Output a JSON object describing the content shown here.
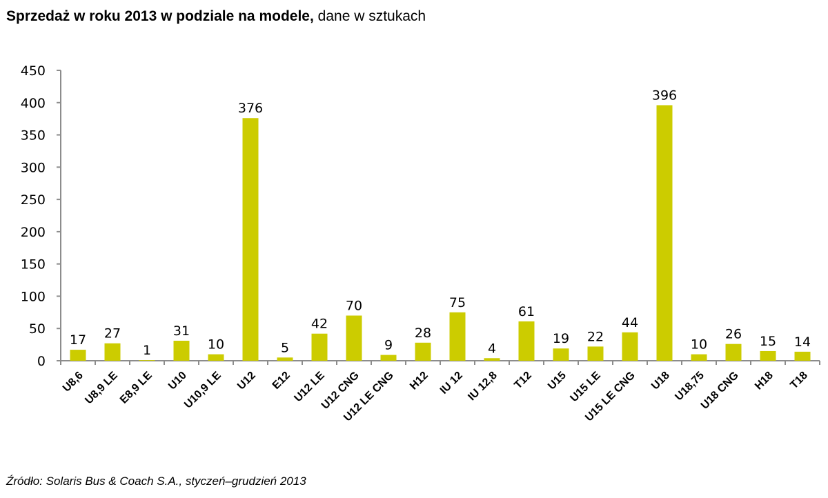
{
  "chart_data": {
    "type": "bar",
    "title": "Sprzedaż w roku 2013 w podziale na modele,",
    "subtitle": "dane w sztukach",
    "xlabel": "",
    "ylabel": "",
    "ylim": [
      0,
      450
    ],
    "yticks": [
      0,
      50,
      100,
      150,
      200,
      250,
      300,
      350,
      400,
      450
    ],
    "grid": false,
    "legend": null,
    "bar_color": "#cccc00",
    "categories": [
      "U8,6",
      "U8,9 LE",
      "E8,9 LE",
      "U10",
      "U10,9 LE",
      "U12",
      "E12",
      "U12 LE",
      "U12 CNG",
      "U12 LE CNG",
      "H12",
      "IU 12",
      "IU 12,8",
      "T12",
      "U15",
      "U15 LE",
      "U15 LE CNG",
      "U18",
      "U18,75",
      "U18 CNG",
      "H18",
      "T18"
    ],
    "values": [
      17,
      27,
      1,
      31,
      10,
      376,
      5,
      42,
      70,
      9,
      28,
      75,
      4,
      61,
      19,
      22,
      44,
      396,
      10,
      26,
      15,
      14
    ],
    "source": "Źródło: Solaris Bus & Coach S.A., styczeń–grudzień 2013"
  }
}
